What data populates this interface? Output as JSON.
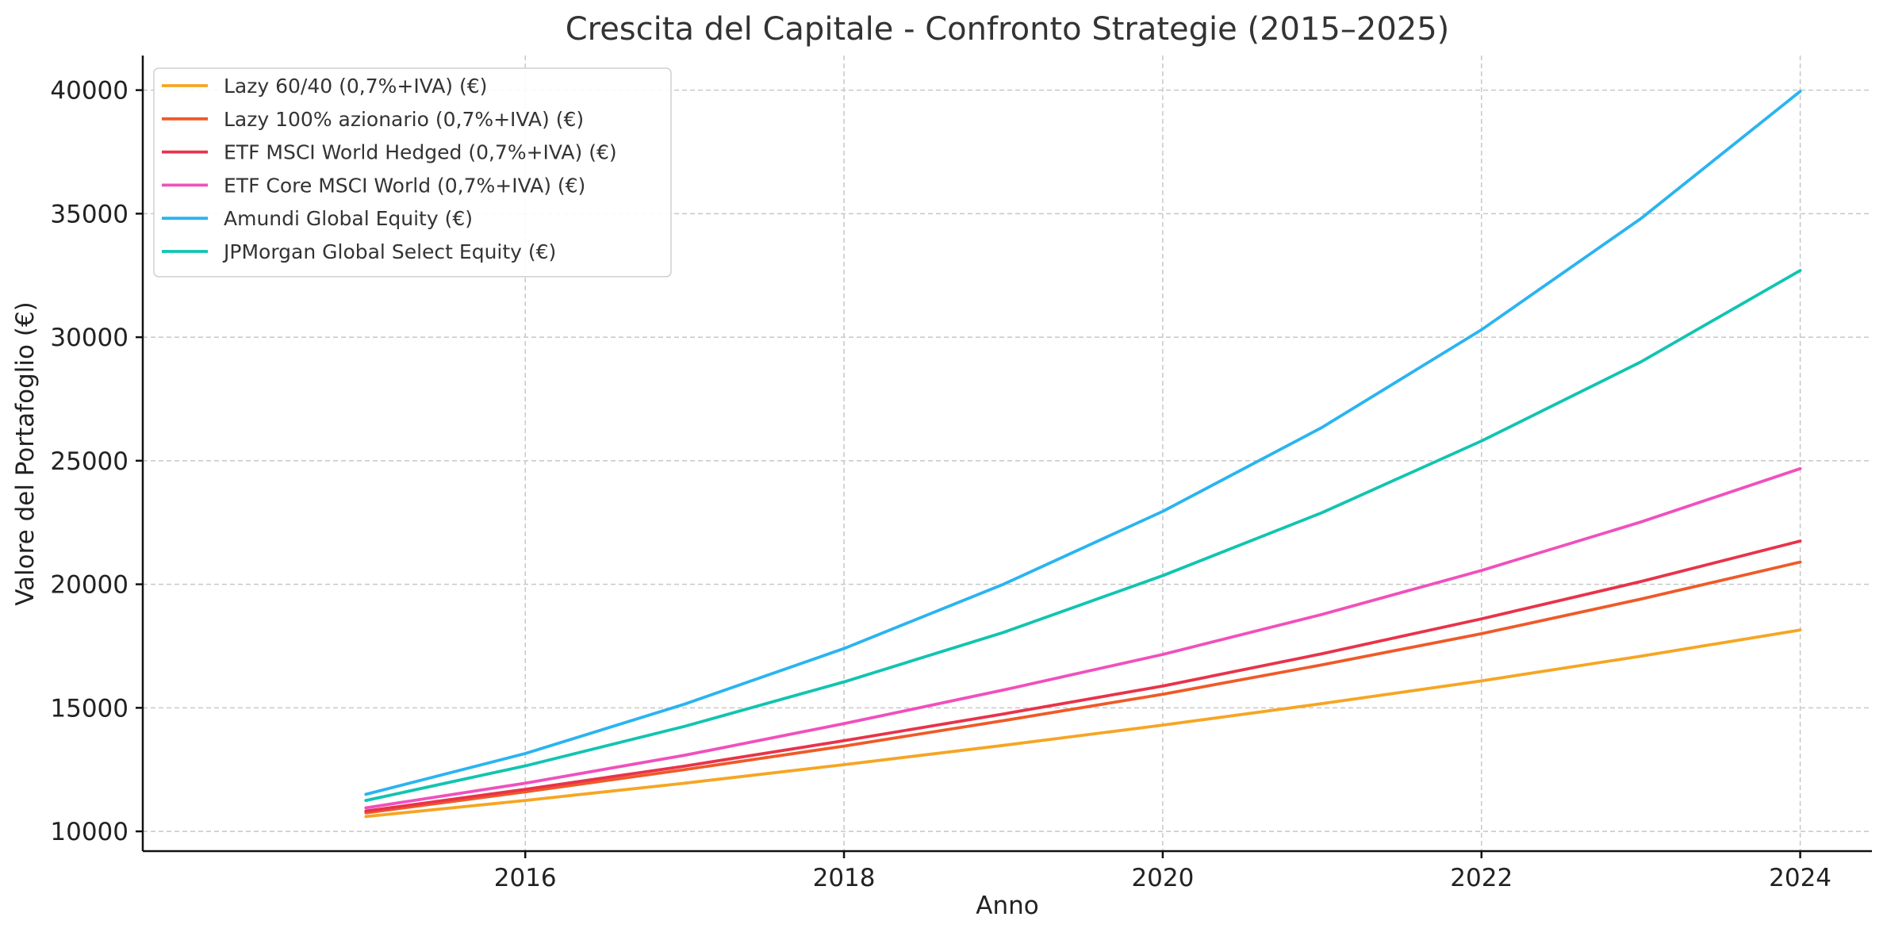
{
  "chart_data": {
    "type": "line",
    "title": "Crescita del Capitale - Confronto Strategie (2015–2025)",
    "xlabel": "Anno",
    "ylabel": "Valore del Portafoglio (€)",
    "x": [
      2015,
      2016,
      2017,
      2018,
      2019,
      2020,
      2021,
      2022,
      2023,
      2024
    ],
    "xlim": [
      2013.6,
      2024.45
    ],
    "ylim": [
      9200,
      41400
    ],
    "x_ticks": [
      2016,
      2018,
      2020,
      2022,
      2024
    ],
    "y_ticks": [
      10000,
      15000,
      20000,
      25000,
      30000,
      35000,
      40000
    ],
    "grid": true,
    "legend_position": "top-left",
    "series": [
      {
        "name": "Lazy 60/40 (0,7%+IVA) (€)",
        "color": "#f5a623",
        "values": [
          10600,
          11250,
          11950,
          12700,
          13480,
          14300,
          15170,
          16090,
          17090,
          18150
        ]
      },
      {
        "name": "Lazy 100% azionario (0,7%+IVA) (€)",
        "color": "#ef5a28",
        "values": [
          10750,
          11600,
          12500,
          13450,
          14480,
          15550,
          16740,
          18000,
          19400,
          20900
        ]
      },
      {
        "name": "ETF MSCI World Hedged (0,7%+IVA) (€)",
        "color": "#e8334a",
        "values": [
          10820,
          11700,
          12640,
          13670,
          14750,
          15880,
          17190,
          18600,
          20110,
          21750
        ]
      },
      {
        "name": "ETF Core MSCI World (0,7%+IVA) (€)",
        "color": "#f050bc",
        "values": [
          10950,
          11950,
          13080,
          14360,
          15720,
          17160,
          18780,
          20560,
          22520,
          24680
        ]
      },
      {
        "name": "Amundi Global Equity (€)",
        "color": "#2ab4f0",
        "values": [
          11500,
          13150,
          15150,
          17400,
          20000,
          22950,
          26350,
          30300,
          34800,
          39950
        ]
      },
      {
        "name": "JPMorgan Global Select Equity (€)",
        "color": "#11c4b0",
        "values": [
          11250,
          12650,
          14250,
          16050,
          18050,
          20350,
          22900,
          25800,
          29000,
          32700
        ]
      }
    ]
  }
}
